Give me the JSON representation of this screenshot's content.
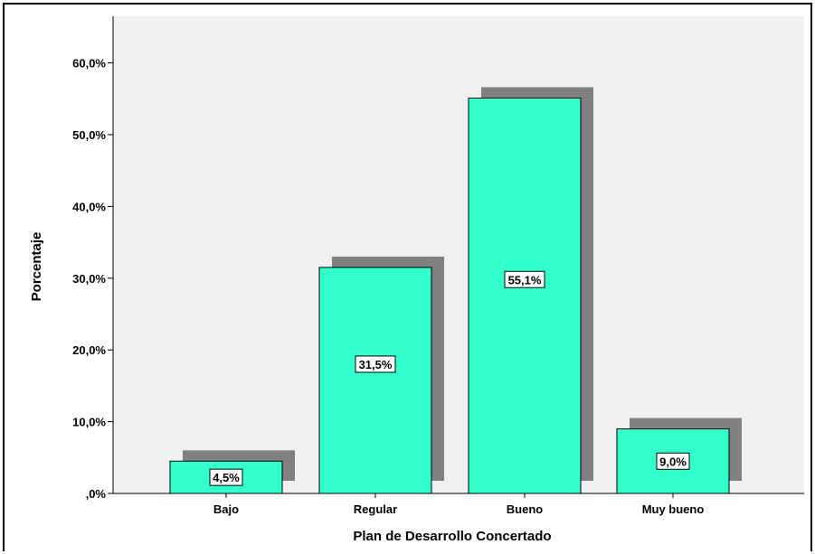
{
  "chart_data": {
    "type": "bar",
    "categories": [
      "Bajo",
      "Regular",
      "Bueno",
      "Muy bueno"
    ],
    "values": [
      4.5,
      31.5,
      55.1,
      9.0
    ],
    "data_labels": [
      "4,5%",
      "31,5%",
      "55,1%",
      "9,0%"
    ],
    "title": "",
    "xlabel": "Plan de Desarrollo Concertado",
    "ylabel": "Porcentaje",
    "ylim": [
      0,
      66.5
    ],
    "yticks": [
      0,
      10,
      20,
      30,
      40,
      50,
      60
    ],
    "ytick_labels": [
      ",0%",
      "10,0%",
      "20,0%",
      "30,0%",
      "40,0%",
      "50,0%",
      "60,0%"
    ],
    "grid": false,
    "legend": "none",
    "colors": {
      "bar": "#33ffcc",
      "shadow": "#808080",
      "plot_background": "#f0f0f0"
    }
  }
}
